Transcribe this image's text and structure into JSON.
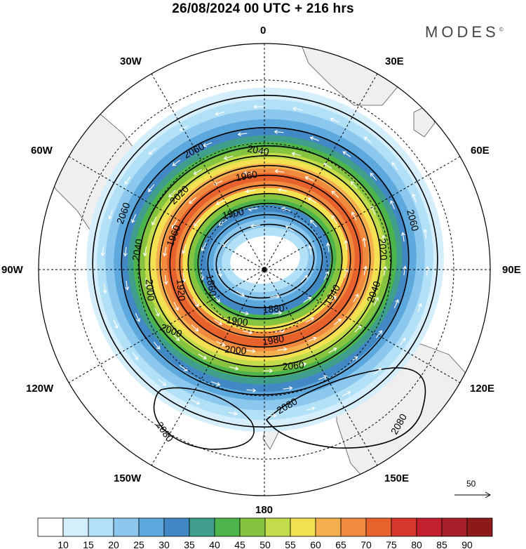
{
  "title": "26/08/2024  00 UTC  + 216 hrs",
  "brand": "MODES",
  "brand_mark": "©",
  "longitude_labels": {
    "n0": "0",
    "e30": "30E",
    "e60": "60E",
    "e90": "90E",
    "e120": "120E",
    "e150": "150E",
    "s180": "180",
    "w150": "150W",
    "w120": "120W",
    "w90": "90W",
    "w60": "60W",
    "w30": "30W"
  },
  "contour_labels": [
    "1860",
    "1880",
    "1900",
    "1920",
    "1940",
    "1960",
    "1980",
    "2000",
    "2020",
    "2040",
    "2060",
    "2080"
  ],
  "vector_reference": "50",
  "colorbar": {
    "ticks": [
      "10",
      "15",
      "20",
      "25",
      "30",
      "35",
      "40",
      "45",
      "50",
      "55",
      "60",
      "65",
      "70",
      "75",
      "80",
      "85",
      "90"
    ],
    "colors": [
      "#ffffff",
      "#d4eefb",
      "#b2e0f6",
      "#8cc8ee",
      "#5da8dd",
      "#4288c4",
      "#3f9e8c",
      "#4cb44a",
      "#86c33f",
      "#c3dc4c",
      "#f4e152",
      "#f4b04e",
      "#ef8a3e",
      "#e8622e",
      "#d6362c",
      "#c22030",
      "#a71f2a",
      "#8c1a1a"
    ]
  }
}
